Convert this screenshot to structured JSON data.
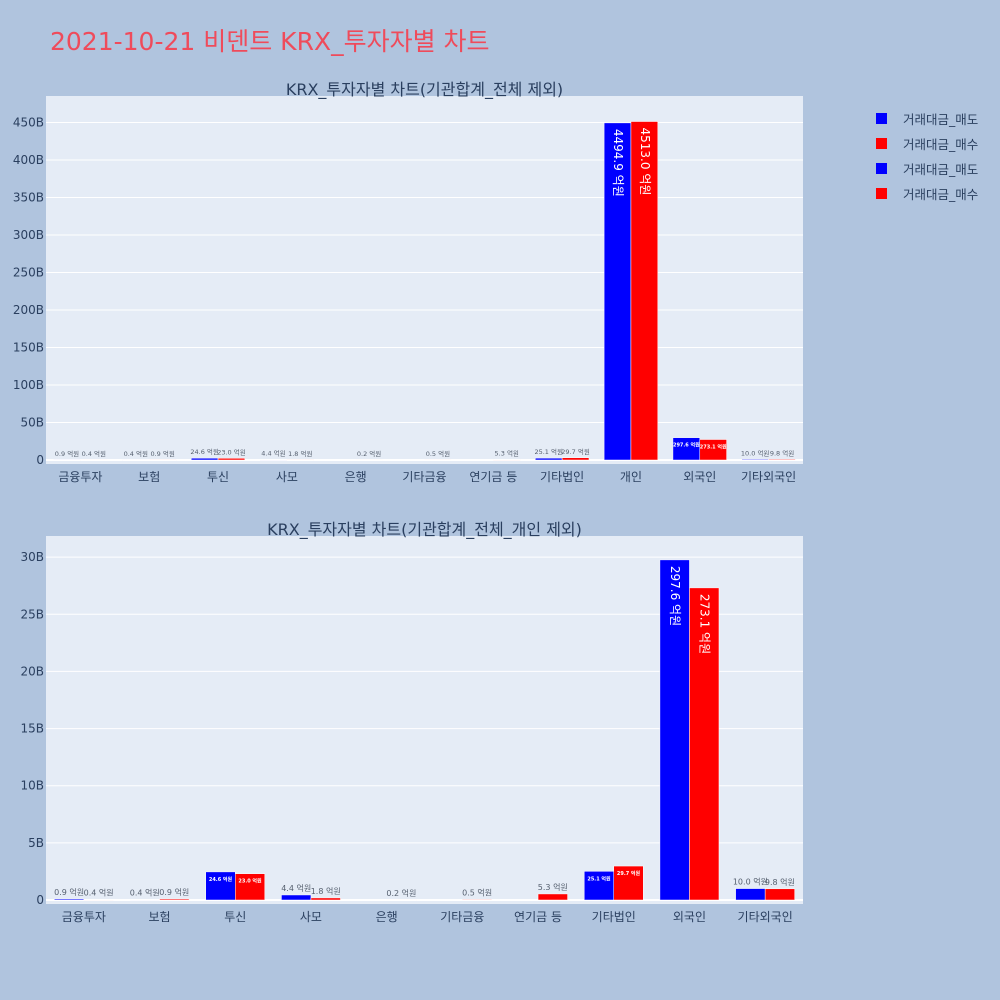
{
  "page_title": "2021-10-21 비덴트 KRX_투자자별 차트",
  "colors": {
    "sell": "#0000ff",
    "buy": "#ff0000",
    "plot_bg": "#e5ecf6",
    "page_bg": "#b0c4de"
  },
  "legend": [
    {
      "name": "거래대금_매도",
      "color": "#0000ff"
    },
    {
      "name": "거래대금_매수",
      "color": "#ff0000"
    },
    {
      "name": "거래대금_매도",
      "color": "#0000ff"
    },
    {
      "name": "거래대금_매수",
      "color": "#ff0000"
    }
  ],
  "chart_data": [
    {
      "type": "bar",
      "title": "KRX_투자자별 차트(기관합계_전체 제외)",
      "categories": [
        "금융투자",
        "보험",
        "투신",
        "사모",
        "은행",
        "기타금융",
        "연기금 등",
        "기타법인",
        "개인",
        "외국인",
        "기타외국인"
      ],
      "ylim": [
        0,
        480
      ],
      "yticks": [
        0,
        50,
        100,
        150,
        200,
        250,
        300,
        350,
        400,
        450
      ],
      "ytick_labels": [
        "0",
        "50B",
        "100B",
        "150B",
        "200B",
        "250B",
        "300B",
        "350B",
        "400B",
        "450B"
      ],
      "series": [
        {
          "name": "거래대금_매도",
          "values": [
            0.09,
            0.04,
            2.46,
            0.44,
            0,
            0,
            0,
            2.51,
            449.49,
            29.76,
            1.0
          ],
          "labels": [
            "0.9 억원",
            "0.4 억원",
            "24.6 억원",
            "4.4 억원",
            "",
            "",
            "",
            "25.1 억원",
            "4494.9 억원",
            "297.6 억원",
            "10.0 억원"
          ]
        },
        {
          "name": "거래대금_매수",
          "values": [
            0.04,
            0.09,
            2.3,
            0.18,
            0.02,
            0.05,
            0.53,
            2.97,
            451.3,
            27.31,
            0.98
          ],
          "labels": [
            "0.4 억원",
            "0.9 억원",
            "23.0 억원",
            "1.8 억원",
            "0.2 억원",
            "0.5 억원",
            "5.3 억원",
            "29.7 억원",
            "4513.0 억원",
            "273.1 억원",
            "9.8 억원"
          ]
        }
      ]
    },
    {
      "type": "bar",
      "title": "KRX_투자자별 차트(기관합계_전체_개인 제외)",
      "categories": [
        "금융투자",
        "보험",
        "투신",
        "사모",
        "은행",
        "기타금융",
        "연기금 등",
        "기타법인",
        "외국인",
        "기타외국인"
      ],
      "ylim": [
        0,
        31.5
      ],
      "yticks": [
        0,
        5,
        10,
        15,
        20,
        25,
        30
      ],
      "ytick_labels": [
        "0",
        "5B",
        "10B",
        "15B",
        "20B",
        "25B",
        "30B"
      ],
      "series": [
        {
          "name": "거래대금_매도",
          "values": [
            0.09,
            0.04,
            2.46,
            0.44,
            0,
            0,
            0,
            2.51,
            29.76,
            1.0
          ],
          "labels": [
            "0.9 억원",
            "0.4 억원",
            "24.6 억원",
            "4.4 억원",
            "",
            "",
            "",
            "25.1 억원",
            "297.6 억원",
            "10.0 억원"
          ]
        },
        {
          "name": "거래대금_매수",
          "values": [
            0.04,
            0.09,
            2.3,
            0.18,
            0.02,
            0.05,
            0.53,
            2.97,
            27.31,
            0.98
          ],
          "labels": [
            "0.4 억원",
            "0.9 억원",
            "23.0 억원",
            "1.8 억원",
            "0.2 억원",
            "0.5 억원",
            "5.3 억원",
            "29.7 억원",
            "273.1 억원",
            "9.8 억원"
          ]
        }
      ]
    }
  ]
}
